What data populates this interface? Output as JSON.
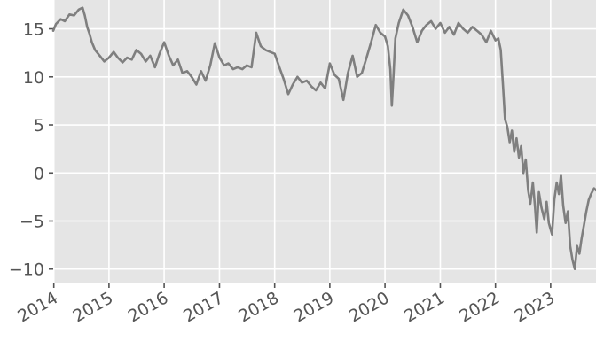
{
  "chart_data": {
    "type": "line",
    "title": "",
    "xlabel": "",
    "ylabel": "",
    "grid": true,
    "xlim": [
      "2013-12-28",
      "2023-10-28"
    ],
    "ylim": [
      -11.5,
      18
    ],
    "y_ticks": [
      15,
      10,
      5,
      0,
      -5,
      -10
    ],
    "y_tick_labels": [
      "15",
      "10",
      "5",
      "0",
      "−5",
      "−10"
    ],
    "x_ticks": [
      "2014-01-01",
      "2015-01-01",
      "2016-01-01",
      "2017-01-01",
      "2018-01-01",
      "2019-01-01",
      "2020-01-01",
      "2021-01-01",
      "2022-01-01",
      "2023-01-01"
    ],
    "x_tick_labels": [
      "2014",
      "2015",
      "2016",
      "2017",
      "2018",
      "2019",
      "2020",
      "2021",
      "2022",
      "2023"
    ],
    "colors": {
      "series": "#7f7f7f",
      "plot_background": "#e5e5e5",
      "grid": "#ffffff",
      "text": "#555555"
    },
    "series": [
      {
        "points": [
          [
            "2013-12-28",
            14.8
          ],
          [
            "2014-01-15",
            15.5
          ],
          [
            "2014-02-15",
            16.0
          ],
          [
            "2014-03-15",
            15.8
          ],
          [
            "2014-04-15",
            16.5
          ],
          [
            "2014-05-15",
            16.4
          ],
          [
            "2014-06-15",
            17.0
          ],
          [
            "2014-07-10",
            17.2
          ],
          [
            "2014-07-25",
            16.4
          ],
          [
            "2014-08-10",
            15.2
          ],
          [
            "2014-08-25",
            14.5
          ],
          [
            "2014-09-10",
            13.6
          ],
          [
            "2014-10-01",
            12.8
          ],
          [
            "2014-11-01",
            12.2
          ],
          [
            "2014-12-01",
            11.6
          ],
          [
            "2015-01-01",
            12.0
          ],
          [
            "2015-02-01",
            12.6
          ],
          [
            "2015-03-01",
            12.0
          ],
          [
            "2015-04-01",
            11.5
          ],
          [
            "2015-05-01",
            12.0
          ],
          [
            "2015-06-01",
            11.8
          ],
          [
            "2015-07-01",
            12.8
          ],
          [
            "2015-08-01",
            12.4
          ],
          [
            "2015-09-01",
            11.6
          ],
          [
            "2015-10-01",
            12.2
          ],
          [
            "2015-11-01",
            11.0
          ],
          [
            "2015-12-01",
            12.4
          ],
          [
            "2016-01-01",
            13.6
          ],
          [
            "2016-02-01",
            12.2
          ],
          [
            "2016-03-01",
            11.2
          ],
          [
            "2016-04-01",
            11.8
          ],
          [
            "2016-05-01",
            10.4
          ],
          [
            "2016-06-01",
            10.6
          ],
          [
            "2016-07-01",
            10.0
          ],
          [
            "2016-08-01",
            9.2
          ],
          [
            "2016-09-01",
            10.6
          ],
          [
            "2016-10-01",
            9.6
          ],
          [
            "2016-11-01",
            11.2
          ],
          [
            "2016-12-01",
            13.5
          ],
          [
            "2017-01-01",
            12.0
          ],
          [
            "2017-02-01",
            11.2
          ],
          [
            "2017-03-01",
            11.4
          ],
          [
            "2017-04-01",
            10.8
          ],
          [
            "2017-05-01",
            11.0
          ],
          [
            "2017-06-01",
            10.8
          ],
          [
            "2017-07-01",
            11.2
          ],
          [
            "2017-08-01",
            11.0
          ],
          [
            "2017-09-01",
            14.6
          ],
          [
            "2017-10-01",
            13.2
          ],
          [
            "2017-11-01",
            12.8
          ],
          [
            "2017-12-01",
            12.6
          ],
          [
            "2018-01-01",
            12.4
          ],
          [
            "2018-02-01",
            11.0
          ],
          [
            "2018-03-01",
            9.8
          ],
          [
            "2018-04-01",
            8.2
          ],
          [
            "2018-05-01",
            9.2
          ],
          [
            "2018-06-01",
            10.0
          ],
          [
            "2018-07-01",
            9.4
          ],
          [
            "2018-08-01",
            9.6
          ],
          [
            "2018-09-01",
            9.0
          ],
          [
            "2018-10-01",
            8.6
          ],
          [
            "2018-11-01",
            9.4
          ],
          [
            "2018-12-01",
            8.8
          ],
          [
            "2019-01-01",
            11.4
          ],
          [
            "2019-02-01",
            10.2
          ],
          [
            "2019-03-01",
            9.8
          ],
          [
            "2019-04-01",
            7.6
          ],
          [
            "2019-05-01",
            10.4
          ],
          [
            "2019-06-01",
            12.2
          ],
          [
            "2019-07-01",
            10.0
          ],
          [
            "2019-08-01",
            10.4
          ],
          [
            "2019-09-01",
            12.0
          ],
          [
            "2019-10-01",
            13.6
          ],
          [
            "2019-11-01",
            15.4
          ],
          [
            "2019-12-01",
            14.6
          ],
          [
            "2020-01-01",
            14.2
          ],
          [
            "2020-01-20",
            13.2
          ],
          [
            "2020-02-05",
            10.8
          ],
          [
            "2020-02-15",
            7.0
          ],
          [
            "2020-02-25",
            9.8
          ],
          [
            "2020-03-10",
            14.0
          ],
          [
            "2020-04-01",
            15.6
          ],
          [
            "2020-05-01",
            17.0
          ],
          [
            "2020-06-01",
            16.4
          ],
          [
            "2020-07-01",
            15.2
          ],
          [
            "2020-08-01",
            13.6
          ],
          [
            "2020-09-01",
            14.8
          ],
          [
            "2020-10-01",
            15.4
          ],
          [
            "2020-11-01",
            15.8
          ],
          [
            "2020-12-01",
            15.0
          ],
          [
            "2021-01-01",
            15.6
          ],
          [
            "2021-02-01",
            14.6
          ],
          [
            "2021-03-01",
            15.2
          ],
          [
            "2021-04-01",
            14.4
          ],
          [
            "2021-05-01",
            15.6
          ],
          [
            "2021-06-01",
            15.0
          ],
          [
            "2021-07-01",
            14.6
          ],
          [
            "2021-08-01",
            15.2
          ],
          [
            "2021-09-01",
            14.8
          ],
          [
            "2021-10-01",
            14.4
          ],
          [
            "2021-11-01",
            13.6
          ],
          [
            "2021-12-01",
            14.8
          ],
          [
            "2022-01-01",
            13.8
          ],
          [
            "2022-01-20",
            14.0
          ],
          [
            "2022-02-05",
            12.8
          ],
          [
            "2022-02-20",
            9.0
          ],
          [
            "2022-03-05",
            5.6
          ],
          [
            "2022-03-20",
            4.8
          ],
          [
            "2022-04-05",
            3.2
          ],
          [
            "2022-04-20",
            4.4
          ],
          [
            "2022-05-05",
            2.2
          ],
          [
            "2022-05-20",
            3.6
          ],
          [
            "2022-06-05",
            1.6
          ],
          [
            "2022-06-20",
            2.8
          ],
          [
            "2022-07-05",
            0.0
          ],
          [
            "2022-07-20",
            1.4
          ],
          [
            "2022-08-05",
            -1.8
          ],
          [
            "2022-08-20",
            -3.2
          ],
          [
            "2022-09-05",
            -1.0
          ],
          [
            "2022-09-20",
            -3.6
          ],
          [
            "2022-10-01",
            -6.2
          ],
          [
            "2022-10-15",
            -2.0
          ],
          [
            "2022-11-01",
            -3.6
          ],
          [
            "2022-11-20",
            -4.8
          ],
          [
            "2022-12-05",
            -3.0
          ],
          [
            "2022-12-20",
            -5.2
          ],
          [
            "2023-01-10",
            -6.4
          ],
          [
            "2023-01-25",
            -2.8
          ],
          [
            "2023-02-10",
            -1.0
          ],
          [
            "2023-02-25",
            -2.2
          ],
          [
            "2023-03-10",
            -0.2
          ],
          [
            "2023-03-25",
            -3.4
          ],
          [
            "2023-04-10",
            -5.2
          ],
          [
            "2023-04-25",
            -4.0
          ],
          [
            "2023-05-10",
            -7.6
          ],
          [
            "2023-05-25",
            -9.0
          ],
          [
            "2023-06-10",
            -10.0
          ],
          [
            "2023-06-25",
            -7.6
          ],
          [
            "2023-07-10",
            -8.4
          ],
          [
            "2023-07-25",
            -6.8
          ],
          [
            "2023-08-10",
            -5.4
          ],
          [
            "2023-08-25",
            -4.0
          ],
          [
            "2023-09-10",
            -2.8
          ],
          [
            "2023-09-25",
            -2.2
          ],
          [
            "2023-10-15",
            -1.6
          ],
          [
            "2023-10-28",
            -1.8
          ]
        ]
      }
    ]
  }
}
